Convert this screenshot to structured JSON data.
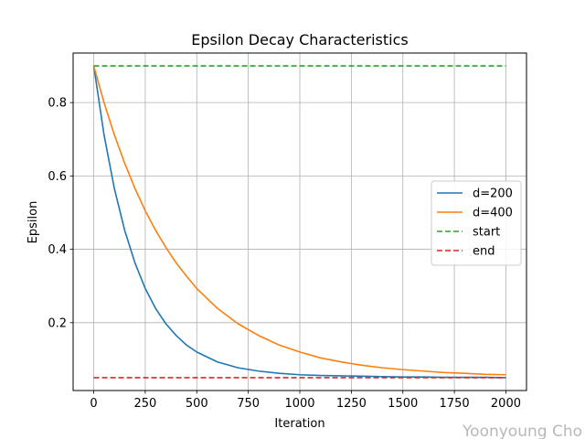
{
  "chart_data": {
    "type": "line",
    "title": "Epsilon Decay Characteristics",
    "xlabel": "Iteration",
    "ylabel": "Epsilon",
    "xlim": [
      -100,
      2100
    ],
    "ylim": [
      0.015,
      0.935
    ],
    "xticks": [
      0,
      250,
      500,
      750,
      1000,
      1250,
      1500,
      1750,
      2000
    ],
    "xtick_labels": [
      "0",
      "250",
      "500",
      "750",
      "1000",
      "1250",
      "1500",
      "1750",
      "2000"
    ],
    "yticks": [
      0.2,
      0.4,
      0.6,
      0.8
    ],
    "ytick_labels": [
      "0.2",
      "0.4",
      "0.6",
      "0.8"
    ],
    "grid": true,
    "legend_position": "center-right",
    "x": [
      0,
      50,
      100,
      150,
      200,
      250,
      300,
      350,
      400,
      450,
      500,
      600,
      700,
      800,
      900,
      1000,
      1100,
      1200,
      1300,
      1400,
      1500,
      1600,
      1700,
      1800,
      1900,
      2000
    ],
    "series": [
      {
        "name": "d=200",
        "color": "#1f77b4",
        "style": "solid",
        "values": [
          0.9,
          0.712,
          0.566,
          0.452,
          0.363,
          0.293,
          0.239,
          0.197,
          0.165,
          0.139,
          0.12,
          0.093,
          0.077,
          0.068,
          0.062,
          0.058,
          0.056,
          0.055,
          0.054,
          0.053,
          0.052,
          0.052,
          0.051,
          0.051,
          0.051,
          0.05
        ]
      },
      {
        "name": "d=400",
        "color": "#ff7f0e",
        "style": "solid",
        "values": [
          0.9,
          0.8,
          0.712,
          0.635,
          0.566,
          0.505,
          0.452,
          0.405,
          0.363,
          0.327,
          0.293,
          0.239,
          0.197,
          0.165,
          0.139,
          0.12,
          0.104,
          0.093,
          0.084,
          0.077,
          0.072,
          0.068,
          0.064,
          0.062,
          0.059,
          0.058
        ]
      },
      {
        "name": "start",
        "color": "#2ca02c",
        "style": "dashed",
        "values": [
          0.9,
          0.9,
          0.9,
          0.9,
          0.9,
          0.9,
          0.9,
          0.9,
          0.9,
          0.9,
          0.9,
          0.9,
          0.9,
          0.9,
          0.9,
          0.9,
          0.9,
          0.9,
          0.9,
          0.9,
          0.9,
          0.9,
          0.9,
          0.9,
          0.9,
          0.9
        ]
      },
      {
        "name": "end",
        "color": "#d62728",
        "style": "dashed",
        "values": [
          0.05,
          0.05,
          0.05,
          0.05,
          0.05,
          0.05,
          0.05,
          0.05,
          0.05,
          0.05,
          0.05,
          0.05,
          0.05,
          0.05,
          0.05,
          0.05,
          0.05,
          0.05,
          0.05,
          0.05,
          0.05,
          0.05,
          0.05,
          0.05,
          0.05,
          0.05
        ]
      }
    ]
  },
  "watermark": "Yoonyoung Cho"
}
